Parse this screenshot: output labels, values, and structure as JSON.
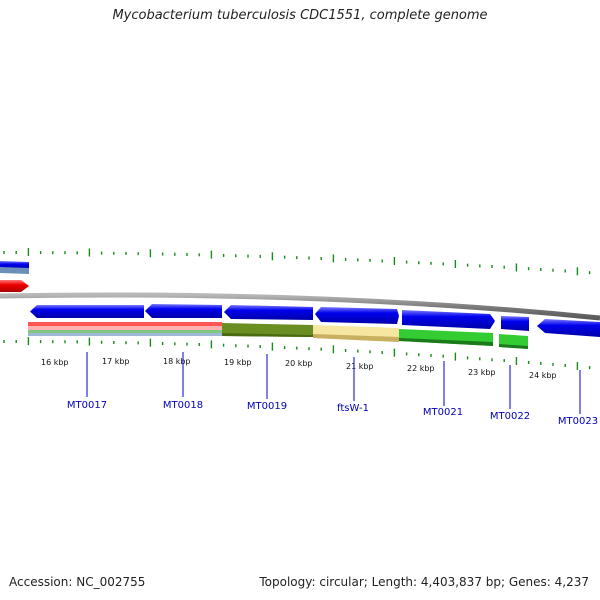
{
  "title": "Mycobacterium tuberculosis CDC1551, complete genome",
  "footer": {
    "accession": "Accession: NC_002755",
    "summary": "Topology: circular; Length: 4,403,837 bp; Genes: 4,237"
  },
  "colors": {
    "backbone": "#8a8a8a",
    "gene": "#0000ee",
    "gene_highlight": "#5a5aff",
    "red_feature": "#ee0000",
    "tick": "#1a8a1a",
    "gene_label": "#0000b8"
  },
  "kbp_labels": [
    "16 kbp",
    "17 kbp",
    "18 kbp",
    "19 kbp",
    "20 kbp",
    "21 kbp",
    "22 kbp",
    "23 kbp",
    "24 kbp"
  ],
  "gene_labels": [
    "MT0017",
    "MT0018",
    "MT0019",
    "ftsW-1",
    "MT0021",
    "MT0022",
    "MT0023"
  ]
}
